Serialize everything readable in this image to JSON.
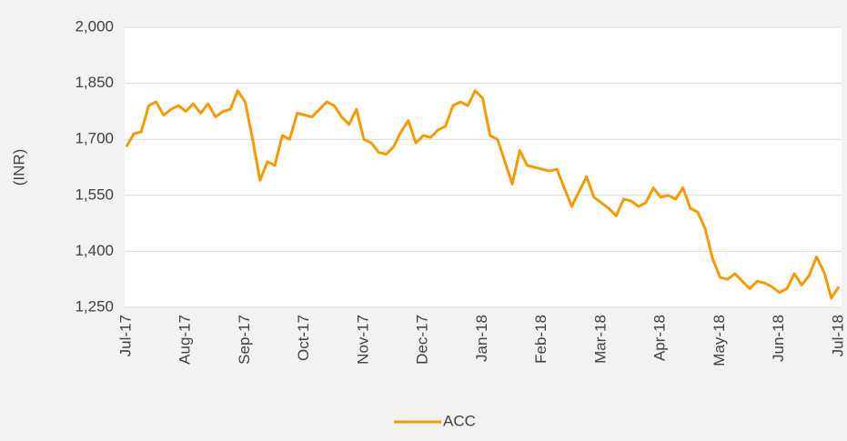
{
  "chart_data": {
    "type": "line",
    "y_label": "(INR)",
    "categories": [
      "Jul-17",
      null,
      null,
      null,
      null,
      null,
      null,
      null,
      "Aug-17",
      null,
      null,
      null,
      null,
      null,
      null,
      null,
      "Sep-17",
      null,
      null,
      null,
      null,
      null,
      null,
      null,
      "Oct-17",
      null,
      null,
      null,
      null,
      null,
      null,
      null,
      "Nov-17",
      null,
      null,
      null,
      null,
      null,
      null,
      null,
      "Dec-17",
      null,
      null,
      null,
      null,
      null,
      null,
      null,
      "Jan-18",
      null,
      null,
      null,
      null,
      null,
      null,
      null,
      "Feb-18",
      null,
      null,
      null,
      null,
      null,
      null,
      null,
      "Mar-18",
      null,
      null,
      null,
      null,
      null,
      null,
      null,
      "Apr-18",
      null,
      null,
      null,
      null,
      null,
      null,
      null,
      "May-18",
      null,
      null,
      null,
      null,
      null,
      null,
      null,
      "Jun-18",
      null,
      null,
      null,
      null,
      null,
      null,
      null,
      "Jul-18"
    ],
    "series": [
      {
        "name": "ACC",
        "color": "#f59b00",
        "values": [
          1680,
          1715,
          1720,
          1790,
          1800,
          1765,
          1780,
          1790,
          1775,
          1795,
          1770,
          1795,
          1760,
          1775,
          1780,
          1830,
          1800,
          1700,
          1590,
          1640,
          1630,
          1710,
          1700,
          1770,
          1765,
          1760,
          1780,
          1800,
          1790,
          1760,
          1740,
          1780,
          1700,
          1690,
          1665,
          1660,
          1680,
          1720,
          1750,
          1690,
          1710,
          1705,
          1725,
          1735,
          1790,
          1800,
          1790,
          1830,
          1810,
          1710,
          1700,
          1640,
          1580,
          1670,
          1630,
          1625,
          1620,
          1615,
          1620,
          1570,
          1520,
          1560,
          1600,
          1545,
          1530,
          1515,
          1495,
          1540,
          1535,
          1520,
          1530,
          1570,
          1545,
          1550,
          1540,
          1570,
          1515,
          1505,
          1460,
          1380,
          1330,
          1325,
          1340,
          1320,
          1300,
          1320,
          1315,
          1305,
          1290,
          1300,
          1340,
          1310,
          1335,
          1385,
          1345,
          1275,
          1305
        ]
      }
    ],
    "ylim": [
      1250,
      2000
    ],
    "yticks": [
      {
        "value": 1250,
        "label": "1,250"
      },
      {
        "value": 1400,
        "label": "1,400"
      },
      {
        "value": 1550,
        "label": "1,550"
      },
      {
        "value": 1700,
        "label": "1,700"
      },
      {
        "value": 1850,
        "label": "1,850"
      },
      {
        "value": 2000,
        "label": "2,000"
      }
    ],
    "grid": true,
    "legend": "bottom"
  }
}
